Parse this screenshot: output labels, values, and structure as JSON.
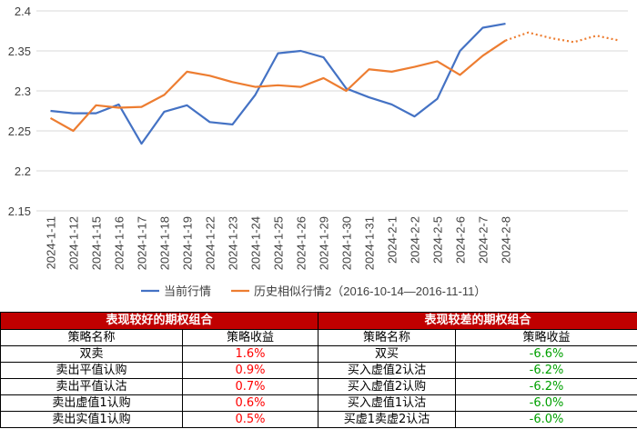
{
  "chart_data": {
    "type": "line",
    "categories": [
      "2024-1-11",
      "2024-1-12",
      "2024-1-15",
      "2024-1-16",
      "2024-1-17",
      "2024-1-18",
      "2024-1-19",
      "2024-1-22",
      "2024-1-23",
      "2024-1-24",
      "2024-1-25",
      "2024-1-26",
      "2024-1-29",
      "2024-1-30",
      "2024-1-31",
      "2024-2-1",
      "2024-2-2",
      "2024-2-5",
      "2024-2-6",
      "2024-2-7",
      "2024-2-8",
      null,
      null,
      null,
      null,
      null
    ],
    "series": [
      {
        "name": "当前行情",
        "color": "#4472c4",
        "values": [
          2.275,
          2.272,
          2.272,
          2.283,
          2.234,
          2.274,
          2.282,
          2.261,
          2.258,
          2.295,
          2.347,
          2.35,
          2.342,
          2.303,
          2.292,
          2.283,
          2.268,
          2.29,
          2.35,
          2.379,
          2.384,
          null,
          null,
          null,
          null,
          null
        ]
      },
      {
        "name": "历史相似行情2（2016-10-14—2016-11-11）",
        "color": "#ed7d31",
        "dotted_from": 20,
        "values": [
          2.266,
          2.25,
          2.282,
          2.279,
          2.28,
          2.295,
          2.324,
          2.319,
          2.311,
          2.305,
          2.307,
          2.305,
          2.316,
          2.3,
          2.327,
          2.324,
          2.33,
          2.337,
          2.32,
          2.344,
          2.363,
          2.373,
          2.366,
          2.361,
          2.369,
          2.363
        ]
      }
    ],
    "ylim": [
      2.15,
      2.4
    ],
    "yticks": [
      2.15,
      2.2,
      2.25,
      2.3,
      2.35,
      2.4
    ],
    "grid": true,
    "legend": "bottom"
  },
  "table": {
    "groups": [
      "表现较好的期权组合",
      "表现较差的期权组合"
    ],
    "headers": [
      "策略名称",
      "策略收益",
      "策略名称",
      "策略收益"
    ],
    "rows": [
      [
        "双卖",
        "1.6%",
        "双买",
        "-6.6%"
      ],
      [
        "卖出平值认购",
        "0.9%",
        "买入虚值2认沽",
        "-6.2%"
      ],
      [
        "卖出平值认沽",
        "0.7%",
        "买入虚值2认购",
        "-6.2%"
      ],
      [
        "卖出虚值1认购",
        "0.6%",
        "买入虚值1认沽",
        "-6.0%"
      ],
      [
        "卖出实值1认购",
        "0.5%",
        "买虚1卖虚2认沽",
        "-6.0%"
      ]
    ],
    "header_color": "#c00000",
    "positive_color": "#ff0000",
    "negative_color": "#00a000"
  }
}
